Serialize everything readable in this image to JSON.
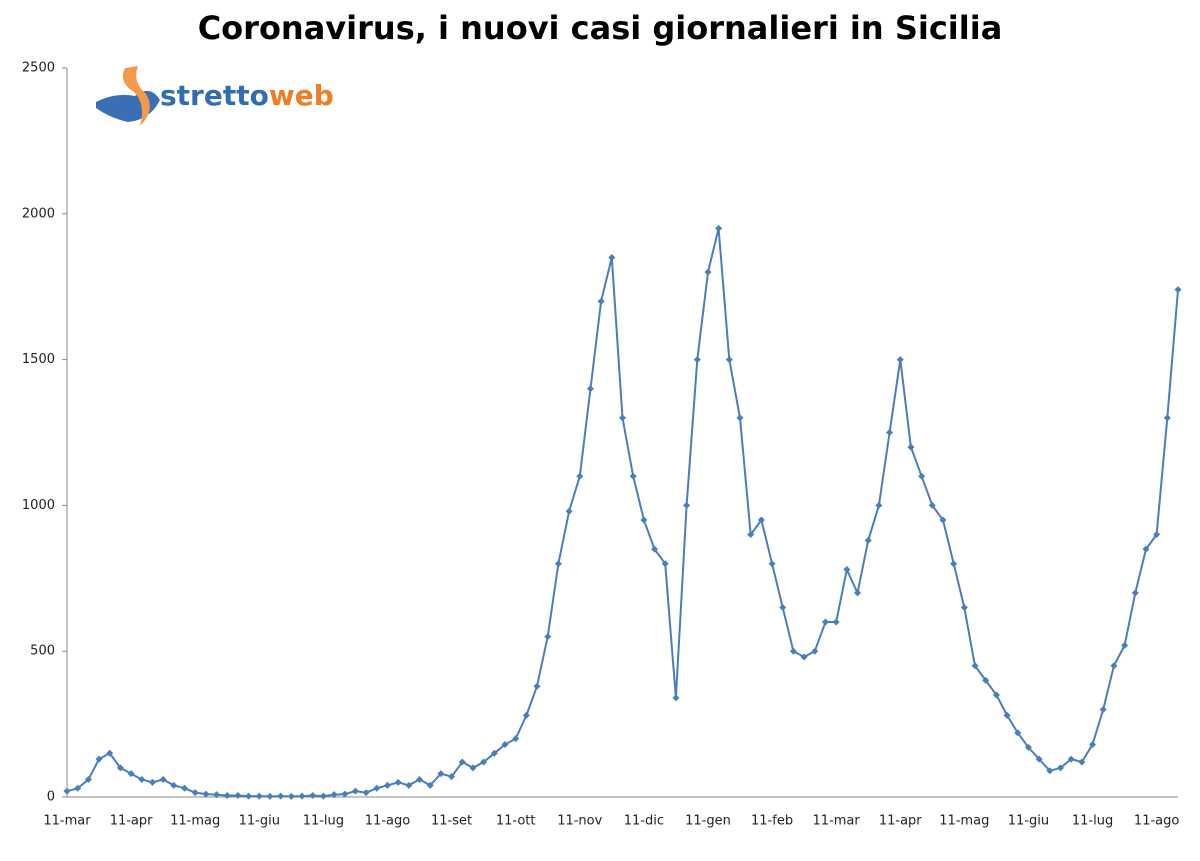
{
  "chart_data": {
    "type": "line",
    "title": "Coronavirus, i nuovi casi giornalieri in Sicilia",
    "logo": {
      "part1": "stretto",
      "part2": "web"
    },
    "categories": [
      "11-mar",
      null,
      null,
      null,
      null,
      null,
      "11-apr",
      null,
      null,
      null,
      null,
      null,
      "11-mag",
      null,
      null,
      null,
      null,
      null,
      "11-giu",
      null,
      null,
      null,
      null,
      null,
      "11-lug",
      null,
      null,
      null,
      null,
      null,
      "11-ago",
      null,
      null,
      null,
      null,
      null,
      "11-set",
      null,
      null,
      null,
      null,
      null,
      "11-ott",
      null,
      null,
      null,
      null,
      null,
      "11-nov",
      null,
      null,
      null,
      null,
      null,
      "11-dic",
      null,
      null,
      null,
      null,
      null,
      "11-gen",
      null,
      null,
      null,
      null,
      null,
      "11-feb",
      null,
      null,
      null,
      null,
      null,
      "11-mar",
      null,
      null,
      null,
      null,
      null,
      "11-apr",
      null,
      null,
      null,
      null,
      null,
      "11-mag",
      null,
      null,
      null,
      null,
      null,
      "11-giu",
      null,
      null,
      null,
      null,
      null,
      "11-lug",
      null,
      null,
      null,
      null,
      null,
      "11-ago",
      null,
      null
    ],
    "series": [
      {
        "name": "nuovi casi",
        "color": "#4a7ebb",
        "values": [
          20,
          30,
          60,
          130,
          150,
          100,
          80,
          60,
          50,
          60,
          40,
          30,
          15,
          10,
          8,
          5,
          5,
          3,
          3,
          2,
          3,
          2,
          3,
          5,
          3,
          8,
          10,
          20,
          15,
          30,
          40,
          50,
          40,
          60,
          40,
          80,
          70,
          120,
          100,
          120,
          150,
          180,
          200,
          280,
          380,
          550,
          800,
          980,
          1100,
          1400,
          1700,
          1850,
          1300,
          1100,
          950,
          850,
          800,
          340,
          1000,
          1500,
          1800,
          1950,
          1500,
          1300,
          900,
          950,
          800,
          650,
          500,
          480,
          500,
          600,
          600,
          780,
          700,
          880,
          1000,
          1250,
          1500,
          1200,
          1100,
          1000,
          950,
          800,
          650,
          450,
          400,
          350,
          280,
          220,
          170,
          130,
          90,
          100,
          130,
          120,
          180,
          300,
          450,
          520,
          700,
          850,
          900,
          1300,
          1740
        ]
      }
    ],
    "ylim": [
      0,
      2500
    ],
    "yticks": [
      0,
      500,
      1000,
      1500,
      2000,
      2500
    ],
    "grid": false
  }
}
